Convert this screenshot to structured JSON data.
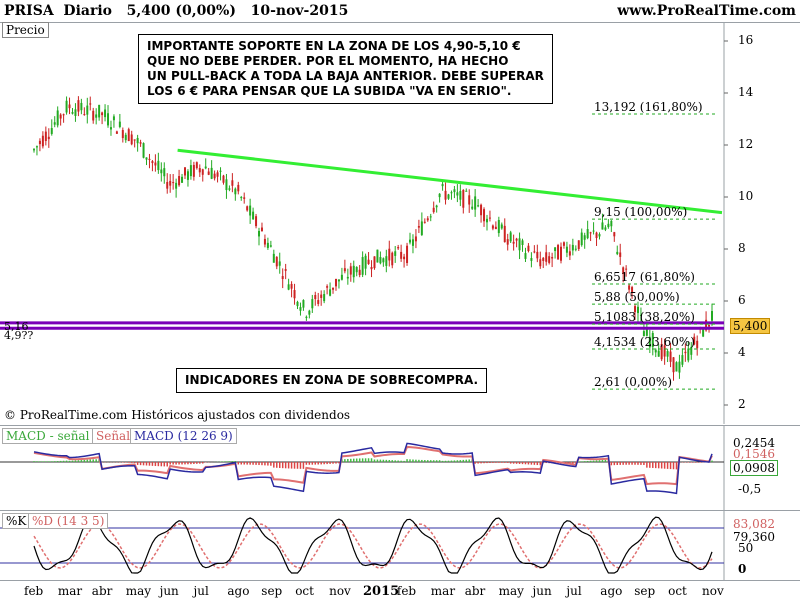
{
  "header": {
    "title": "PRISA  Diario   5,400 (0,00%)   10-nov-2015",
    "website": "www.ProRealTime.com"
  },
  "price_panel": {
    "label": "Precio",
    "y_ticks": [
      "16",
      "14",
      "12",
      "10",
      "8",
      "6",
      "4",
      "2"
    ],
    "current_price_badge": "5,400",
    "support_labels": [
      "5,16",
      "4,9??"
    ],
    "copyright": "© ProRealTime.com  Históricos ajustados con dividendos",
    "note_top": "IMPORTANTE SOPORTE EN LA ZONA DE LOS 4,90-5,10 €\nQUE NO DEBE PERDER. POR EL MOMENTO, HA HECHO\nUN PULL-BACK A TODA LA BAJA ANTERIOR. DEBE SUPERAR\nLOS 6 € PARA PENSAR QUE LA SUBIDA \"VA EN SERIO\".",
    "note_bottom": "INDICADORES EN ZONA DE SOBRECOMPRA.",
    "fib_levels": [
      {
        "label": "13,192 (161,80%)",
        "value": 13.192
      },
      {
        "label": "9,15 (100,00%)",
        "value": 9.15
      },
      {
        "label": "6,6517 (61,80%)",
        "value": 6.6517
      },
      {
        "label": "5,88 (50,00%)",
        "value": 5.88
      },
      {
        "label": "5,1083 (38,20%)",
        "value": 5.1083
      },
      {
        "label": "4,1534 (23,60%)",
        "value": 4.1534
      },
      {
        "label": "2,61 (0,00%)",
        "value": 2.61
      }
    ]
  },
  "macd_panel": {
    "legend_macd_minus_signal": "MACD - señal",
    "legend_signal": "Señal",
    "legend_macd": "MACD (12 26 9)",
    "y_ticks": [
      "-0,5"
    ],
    "values_shown": [
      "0,2454",
      "0,1546",
      "0,0908"
    ]
  },
  "stoch_panel": {
    "legend_k": "%K",
    "legend_d": "%D (14 3 5)",
    "values_shown": [
      "83,082",
      "79,360"
    ],
    "y_ticks": [
      "50",
      "0"
    ]
  },
  "x_axis": {
    "months": [
      "feb",
      "mar",
      "abr",
      "may",
      "jun",
      "jul",
      "ago",
      "sep",
      "oct",
      "nov",
      "2015",
      "feb",
      "mar",
      "abr",
      "may",
      "jun",
      "jul",
      "ago",
      "sep",
      "oct",
      "nov"
    ]
  },
  "colors": {
    "trendline": "#33ee33",
    "support": "#7a00b8",
    "up_candle": "#22aa22",
    "down_candle": "#cc2222",
    "badge": "#f5c542"
  },
  "chart_data": {
    "type": "line",
    "title": "PRISA Diario 5,400 (0,00%) 10-nov-2015",
    "ylabel": "Precio",
    "ylim": [
      1.5,
      16.5
    ],
    "x": [
      "2014-02",
      "2014-03",
      "2014-04",
      "2014-05",
      "2014-06",
      "2014-07",
      "2014-08",
      "2014-09",
      "2014-10",
      "2014-11",
      "2015-01",
      "2015-02",
      "2015-03",
      "2015-04",
      "2015-05",
      "2015-06",
      "2015-07",
      "2015-08",
      "2015-09",
      "2015-10",
      "2015-11"
    ],
    "series": [
      {
        "values": [
          11.8,
          13.5,
          13.2,
          12.2,
          10.5,
          11.2,
          10.2,
          8.0,
          5.6,
          6.8,
          7.6,
          7.8,
          10.2,
          9.8,
          8.4,
          7.5,
          8.2,
          8.9,
          4.8,
          3.4,
          5.4
        ]
      }
    ],
    "trendline": {
      "start": [
        "2014-06",
        11.8
      ],
      "end": [
        "2015-11",
        9.4
      ]
    },
    "support_lines": [
      5.16,
      4.95
    ]
  }
}
